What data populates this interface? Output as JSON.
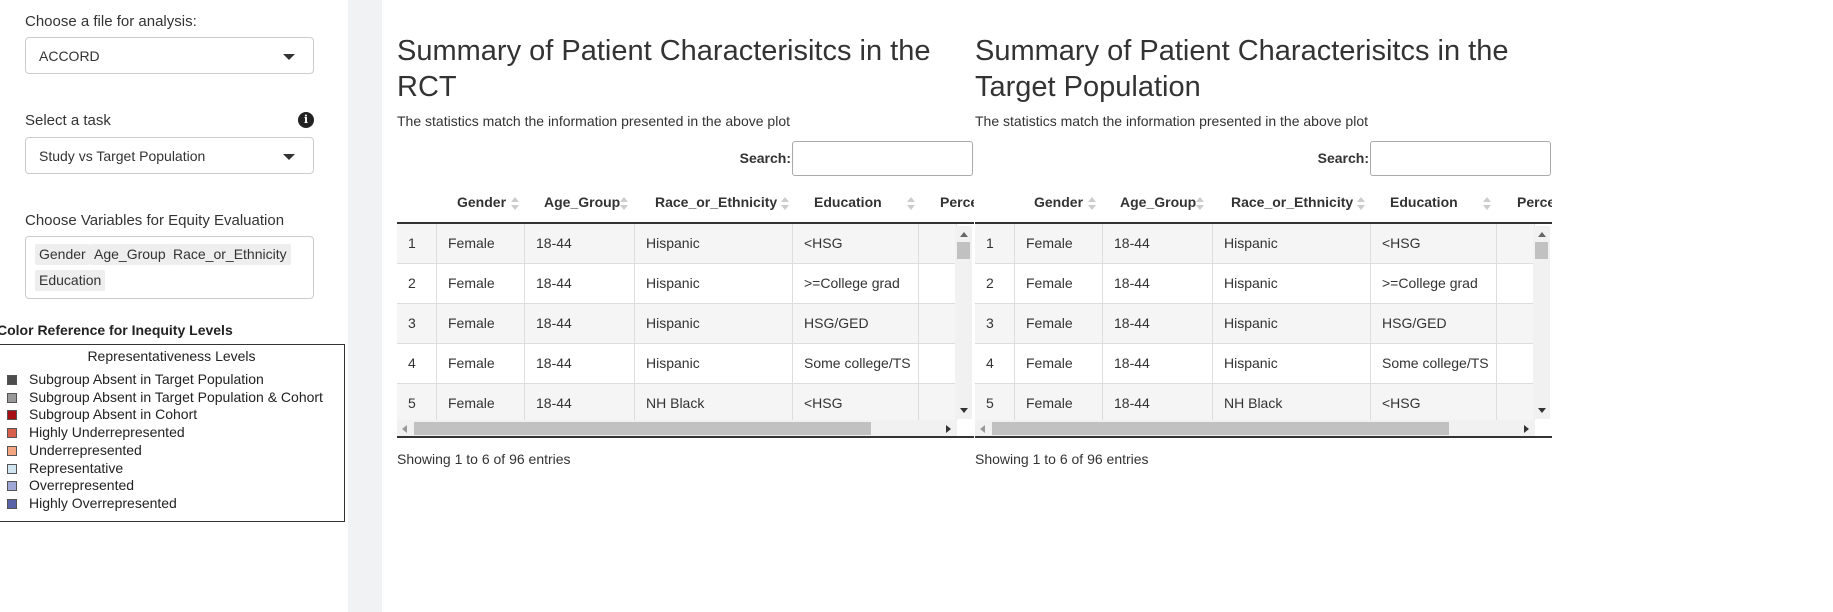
{
  "sidebar": {
    "file_label": "Choose a file for analysis:",
    "file_value": "ACCORD",
    "task_label": "Select a task",
    "task_value": "Study vs Target Population",
    "vars_label": "Choose Variables for Equity Evaluation",
    "vars_chips": [
      "Gender",
      "Age_Group",
      "Race_or_Ethnicity",
      "Education"
    ],
    "color_title": "Color Reference for Inequity Levels",
    "legend_title": "Representativeness Levels",
    "legend_items": [
      {
        "label": "Subgroup Absent in Target Population",
        "color": "#4d4d4d"
      },
      {
        "label": "Subgroup Absent in Target Population & Cohort",
        "color": "#999999"
      },
      {
        "label": "Subgroup Absent in Cohort",
        "color": "#a50f15"
      },
      {
        "label": "Highly Underrepresented",
        "color": "#d6604d"
      },
      {
        "label": "Underrepresented",
        "color": "#f4a582"
      },
      {
        "label": "Representative",
        "color": "#d1e5f0"
      },
      {
        "label": "Overrepresented",
        "color": "#9fa8d5"
      },
      {
        "label": "Highly Overrepresented",
        "color": "#5a63a8"
      }
    ]
  },
  "panels": [
    {
      "title": "Summary of Patient Characterisitcs in the RCT",
      "subtitle": "The statistics match the information presented in the above plot",
      "search_label": "Search:",
      "columns": [
        "Gender",
        "Age_Group",
        "Race_or_Ethnicity",
        "Education",
        "Perce"
      ],
      "rows": [
        [
          "1",
          "Female",
          "18-44",
          "Hispanic",
          "<HSG"
        ],
        [
          "2",
          "Female",
          "18-44",
          "Hispanic",
          ">=College grad"
        ],
        [
          "3",
          "Female",
          "18-44",
          "Hispanic",
          "HSG/GED"
        ],
        [
          "4",
          "Female",
          "18-44",
          "Hispanic",
          "Some college/TS"
        ],
        [
          "5",
          "Female",
          "18-44",
          "NH Black",
          "<HSG"
        ]
      ],
      "info": "Showing 1 to 6 of 96 entries"
    },
    {
      "title": "Summary of Patient Characterisitcs in the Target Population",
      "subtitle": "The statistics match the information presented in the above plot",
      "search_label": "Search:",
      "columns": [
        "Gender",
        "Age_Group",
        "Race_or_Ethnicity",
        "Education",
        "Perce"
      ],
      "rows": [
        [
          "1",
          "Female",
          "18-44",
          "Hispanic",
          "<HSG"
        ],
        [
          "2",
          "Female",
          "18-44",
          "Hispanic",
          ">=College grad"
        ],
        [
          "3",
          "Female",
          "18-44",
          "Hispanic",
          "HSG/GED"
        ],
        [
          "4",
          "Female",
          "18-44",
          "Hispanic",
          "Some college/TS"
        ],
        [
          "5",
          "Female",
          "18-44",
          "NH Black",
          "<HSG"
        ]
      ],
      "info": "Showing 1 to 6 of 96 entries"
    }
  ]
}
